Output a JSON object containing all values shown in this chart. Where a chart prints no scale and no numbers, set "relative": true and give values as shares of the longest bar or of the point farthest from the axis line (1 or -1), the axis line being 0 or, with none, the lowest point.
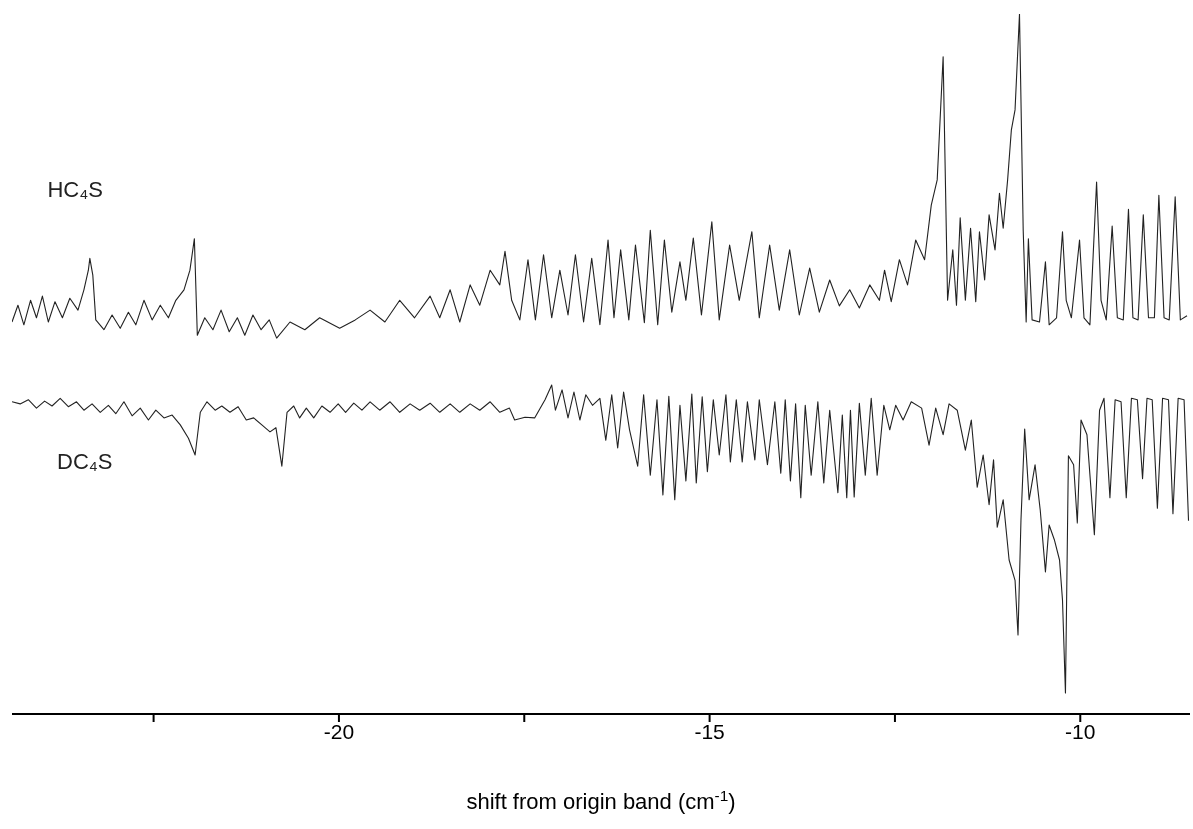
{
  "chart_data": {
    "type": "line",
    "relative": true,
    "xlabel": "shift from origin band (cm$^{-1}$)",
    "xlim": [
      -24.41,
      -8.52
    ],
    "xticks": [
      {
        "value": -22.5,
        "label": null
      },
      -20,
      {
        "value": -17.5,
        "label": null
      },
      -15,
      {
        "value": -12.5,
        "label": null
      },
      -10
    ],
    "line_style": "solid",
    "series": [
      {
        "name": "HC₄S",
        "color": "#222222",
        "x": [
          -24.41,
          -24.33,
          -24.25,
          -24.16,
          -24.08,
          -24.0,
          -23.92,
          -23.83,
          -23.73,
          -23.63,
          -23.52,
          -23.44,
          -23.38,
          -23.36,
          -23.32,
          -23.28,
          -23.17,
          -23.06,
          -22.95,
          -22.84,
          -22.74,
          -22.63,
          -22.52,
          -22.41,
          -22.3,
          -22.2,
          -22.09,
          -22.01,
          -21.95,
          -21.91,
          -21.81,
          -21.7,
          -21.59,
          -21.48,
          -21.37,
          -21.27,
          -21.16,
          -21.05,
          -20.94,
          -20.84,
          -20.66,
          -20.46,
          -20.26,
          -19.99,
          -19.78,
          -19.58,
          -19.38,
          -19.18,
          -18.98,
          -18.77,
          -18.64,
          -18.5,
          -18.37,
          -18.23,
          -18.1,
          -17.96,
          -17.83,
          -17.76,
          -17.67,
          -17.56,
          -17.45,
          -17.35,
          -17.24,
          -17.13,
          -17.02,
          -16.91,
          -16.81,
          -16.7,
          -16.59,
          -16.48,
          -16.37,
          -16.29,
          -16.2,
          -16.09,
          -16.0,
          -15.88,
          -15.8,
          -15.7,
          -15.61,
          -15.51,
          -15.4,
          -15.32,
          -15.22,
          -15.11,
          -14.97,
          -14.87,
          -14.73,
          -14.6,
          -14.43,
          -14.33,
          -14.19,
          -14.06,
          -13.92,
          -13.79,
          -13.65,
          -13.52,
          -13.38,
          -13.25,
          -13.11,
          -12.98,
          -12.84,
          -12.71,
          -12.64,
          -12.55,
          -12.44,
          -12.33,
          -12.22,
          -12.1,
          -12.01,
          -11.93,
          -11.85,
          -11.79,
          -11.72,
          -11.67,
          -11.62,
          -11.55,
          -11.48,
          -11.41,
          -11.36,
          -11.29,
          -11.23,
          -11.15,
          -11.09,
          -11.04,
          -10.98,
          -10.93,
          -10.88,
          -10.82,
          -10.77,
          -10.73,
          -10.7,
          -10.65,
          -10.55,
          -10.47,
          -10.42,
          -10.32,
          -10.24,
          -10.19,
          -10.12,
          -10.01,
          -9.95,
          -9.87,
          -9.78,
          -9.72,
          -9.65,
          -9.57,
          -9.5,
          -9.42,
          -9.35,
          -9.29,
          -9.22,
          -9.15,
          -9.08,
          -9.0,
          -8.94,
          -8.87,
          -8.8,
          -8.72,
          -8.65,
          -8.56
        ],
        "values": [
          0.56,
          0.584,
          0.556,
          0.591,
          0.566,
          0.597,
          0.56,
          0.589,
          0.566,
          0.594,
          0.577,
          0.606,
          0.634,
          0.651,
          0.627,
          0.563,
          0.549,
          0.57,
          0.551,
          0.574,
          0.556,
          0.591,
          0.563,
          0.584,
          0.566,
          0.591,
          0.606,
          0.634,
          0.679,
          0.541,
          0.566,
          0.549,
          0.577,
          0.546,
          0.566,
          0.541,
          0.57,
          0.549,
          0.563,
          0.537,
          0.56,
          0.549,
          0.566,
          0.551,
          0.563,
          0.577,
          0.56,
          0.591,
          0.566,
          0.597,
          0.566,
          0.606,
          0.56,
          0.613,
          0.584,
          0.634,
          0.613,
          0.661,
          0.591,
          0.563,
          0.649,
          0.563,
          0.656,
          0.566,
          0.634,
          0.57,
          0.656,
          0.56,
          0.651,
          0.556,
          0.677,
          0.566,
          0.663,
          0.563,
          0.67,
          0.559,
          0.691,
          0.556,
          0.677,
          0.574,
          0.646,
          0.591,
          0.68,
          0.57,
          0.703,
          0.563,
          0.67,
          0.591,
          0.689,
          0.566,
          0.67,
          0.577,
          0.663,
          0.57,
          0.637,
          0.574,
          0.62,
          0.583,
          0.606,
          0.58,
          0.613,
          0.591,
          0.634,
          0.589,
          0.649,
          0.613,
          0.677,
          0.649,
          0.727,
          0.763,
          0.939,
          0.591,
          0.663,
          0.584,
          0.709,
          0.591,
          0.694,
          0.589,
          0.689,
          0.62,
          0.713,
          0.663,
          0.744,
          0.694,
          0.763,
          0.834,
          0.863,
          1.0,
          0.691,
          0.56,
          0.679,
          0.563,
          0.56,
          0.646,
          0.556,
          0.566,
          0.689,
          0.591,
          0.566,
          0.677,
          0.566,
          0.556,
          0.76,
          0.591,
          0.563,
          0.697,
          0.566,
          0.563,
          0.721,
          0.566,
          0.563,
          0.713,
          0.566,
          0.566,
          0.741,
          0.566,
          0.563,
          0.739,
          0.563,
          0.569
        ]
      },
      {
        "name": "DC₄S",
        "color": "#222222",
        "x": [
          -24.41,
          -24.3,
          -24.19,
          -24.08,
          -23.97,
          -23.87,
          -23.76,
          -23.65,
          -23.54,
          -23.44,
          -23.33,
          -23.22,
          -23.11,
          -23.01,
          -22.9,
          -22.79,
          -22.68,
          -22.57,
          -22.47,
          -22.36,
          -22.25,
          -22.14,
          -22.03,
          -21.94,
          -21.87,
          -21.78,
          -21.67,
          -21.58,
          -21.47,
          -21.36,
          -21.25,
          -21.15,
          -21.04,
          -20.93,
          -20.85,
          -20.77,
          -20.7,
          -20.61,
          -20.53,
          -20.44,
          -20.34,
          -20.23,
          -20.12,
          -20.01,
          -19.91,
          -19.8,
          -19.69,
          -19.58,
          -19.45,
          -19.31,
          -19.18,
          -19.04,
          -18.91,
          -18.77,
          -18.64,
          -18.5,
          -18.37,
          -18.23,
          -18.1,
          -17.96,
          -17.83,
          -17.7,
          -17.63,
          -17.49,
          -17.36,
          -17.22,
          -17.13,
          -17.08,
          -16.99,
          -16.91,
          -16.83,
          -16.75,
          -16.67,
          -16.58,
          -16.48,
          -16.4,
          -16.32,
          -16.24,
          -16.16,
          -16.08,
          -15.97,
          -15.89,
          -15.8,
          -15.71,
          -15.63,
          -15.55,
          -15.47,
          -15.4,
          -15.32,
          -15.24,
          -15.18,
          -15.1,
          -15.03,
          -14.95,
          -14.87,
          -14.78,
          -14.72,
          -14.64,
          -14.56,
          -14.49,
          -14.39,
          -14.33,
          -14.22,
          -14.12,
          -14.04,
          -13.98,
          -13.91,
          -13.84,
          -13.77,
          -13.71,
          -13.63,
          -13.54,
          -13.46,
          -13.38,
          -13.27,
          -13.21,
          -13.15,
          -13.1,
          -13.05,
          -12.98,
          -12.9,
          -12.82,
          -12.74,
          -12.65,
          -12.57,
          -12.49,
          -12.39,
          -12.28,
          -12.14,
          -12.04,
          -11.95,
          -11.85,
          -11.77,
          -11.66,
          -11.55,
          -11.47,
          -11.39,
          -11.31,
          -11.23,
          -11.17,
          -11.12,
          -11.04,
          -10.96,
          -10.88,
          -10.84,
          -10.8,
          -10.75,
          -10.69,
          -10.61,
          -10.54,
          -10.47,
          -10.42,
          -10.35,
          -10.28,
          -10.24,
          -10.2,
          -10.16,
          -10.09,
          -10.04,
          -9.99,
          -9.91,
          -9.81,
          -9.74,
          -9.68,
          -9.6,
          -9.53,
          -9.45,
          -9.38,
          -9.31,
          -9.23,
          -9.16,
          -9.1,
          -9.03,
          -8.96,
          -8.89,
          -8.81,
          -8.75,
          -8.68,
          -8.6,
          -8.54
        ],
        "values": [
          0.446,
          0.443,
          0.449,
          0.437,
          0.447,
          0.44,
          0.451,
          0.439,
          0.446,
          0.434,
          0.443,
          0.431,
          0.441,
          0.429,
          0.446,
          0.426,
          0.437,
          0.42,
          0.434,
          0.423,
          0.427,
          0.413,
          0.394,
          0.37,
          0.431,
          0.446,
          0.434,
          0.44,
          0.431,
          0.439,
          0.42,
          0.423,
          0.413,
          0.403,
          0.409,
          0.354,
          0.431,
          0.44,
          0.423,
          0.437,
          0.423,
          0.44,
          0.431,
          0.443,
          0.431,
          0.444,
          0.434,
          0.446,
          0.434,
          0.446,
          0.431,
          0.443,
          0.434,
          0.444,
          0.431,
          0.443,
          0.431,
          0.443,
          0.434,
          0.446,
          0.431,
          0.437,
          0.42,
          0.424,
          0.423,
          0.449,
          0.47,
          0.434,
          0.463,
          0.423,
          0.46,
          0.42,
          0.456,
          0.441,
          0.451,
          0.391,
          0.456,
          0.38,
          0.46,
          0.406,
          0.354,
          0.456,
          0.341,
          0.449,
          0.313,
          0.454,
          0.306,
          0.441,
          0.333,
          0.457,
          0.33,
          0.453,
          0.346,
          0.449,
          0.37,
          0.456,
          0.36,
          0.449,
          0.36,
          0.446,
          0.363,
          0.449,
          0.356,
          0.446,
          0.344,
          0.449,
          0.333,
          0.443,
          0.309,
          0.441,
          0.341,
          0.446,
          0.33,
          0.434,
          0.316,
          0.427,
          0.309,
          0.434,
          0.31,
          0.444,
          0.341,
          0.451,
          0.341,
          0.441,
          0.406,
          0.441,
          0.42,
          0.446,
          0.437,
          0.384,
          0.437,
          0.399,
          0.443,
          0.434,
          0.377,
          0.42,
          0.324,
          0.37,
          0.299,
          0.363,
          0.267,
          0.306,
          0.22,
          0.191,
          0.113,
          0.277,
          0.407,
          0.306,
          0.356,
          0.291,
          0.203,
          0.27,
          0.249,
          0.22,
          0.163,
          0.03,
          0.369,
          0.356,
          0.273,
          0.42,
          0.399,
          0.256,
          0.434,
          0.451,
          0.309,
          0.449,
          0.446,
          0.309,
          0.451,
          0.449,
          0.336,
          0.451,
          0.449,
          0.294,
          0.451,
          0.449,
          0.286,
          0.451,
          0.449,
          0.276
        ]
      }
    ]
  }
}
